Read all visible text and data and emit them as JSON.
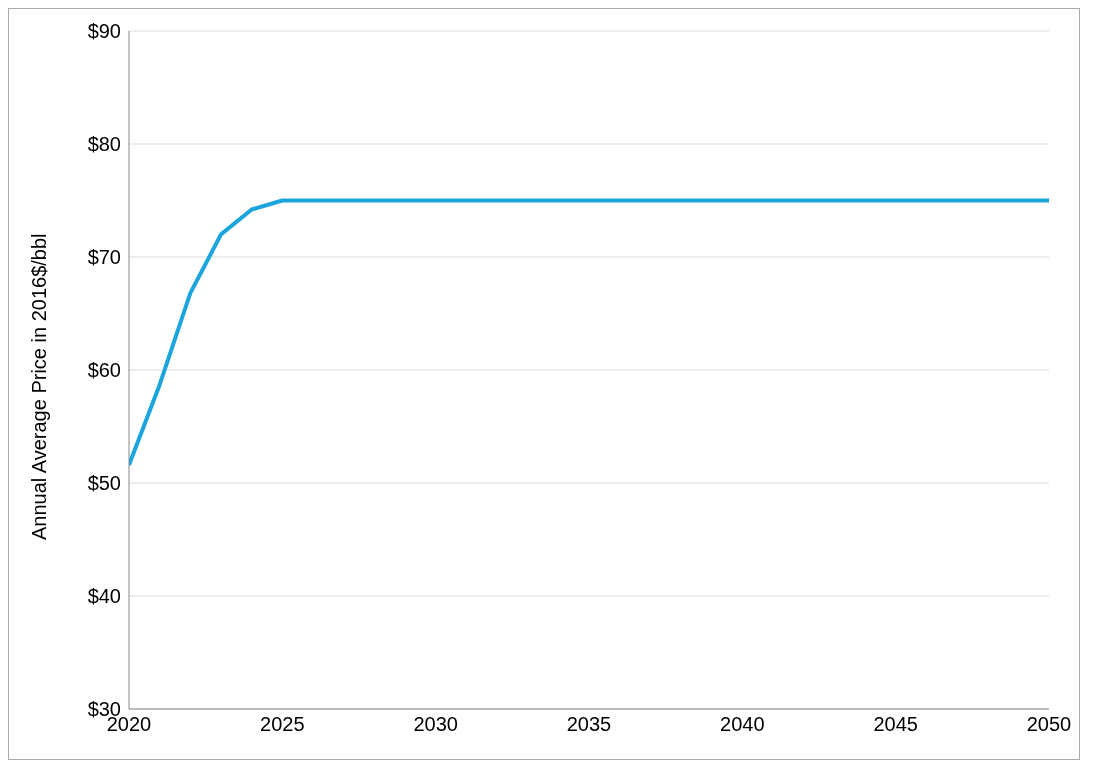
{
  "chart_data": {
    "type": "line",
    "ylabel": "Annual  Average Price in 2016$/bbl",
    "x": [
      2020,
      2021,
      2022,
      2023,
      2024,
      2025,
      2030,
      2035,
      2040,
      2045,
      2050
    ],
    "series": [
      {
        "color": "#1ba5dc",
        "values": [
          51.6,
          58.7,
          66.8,
          72.0,
          74.2,
          75,
          75,
          75,
          75,
          75,
          75
        ]
      }
    ],
    "xlim": [
      2020,
      2050
    ],
    "xticks": [
      2020,
      2025,
      2030,
      2035,
      2040,
      2045,
      2050
    ],
    "ylim": [
      30,
      90
    ],
    "yticks": [
      {
        "value": 30,
        "label": "$30"
      },
      {
        "value": 40,
        "label": "$40"
      },
      {
        "value": 50,
        "label": "$50"
      },
      {
        "value": 60,
        "label": "$60"
      },
      {
        "value": 70,
        "label": "$70"
      },
      {
        "value": 80,
        "label": "$80"
      },
      {
        "value": 90,
        "label": "$90"
      }
    ],
    "grid": "y",
    "legend": false,
    "marker": "none",
    "line_style": "solid"
  }
}
